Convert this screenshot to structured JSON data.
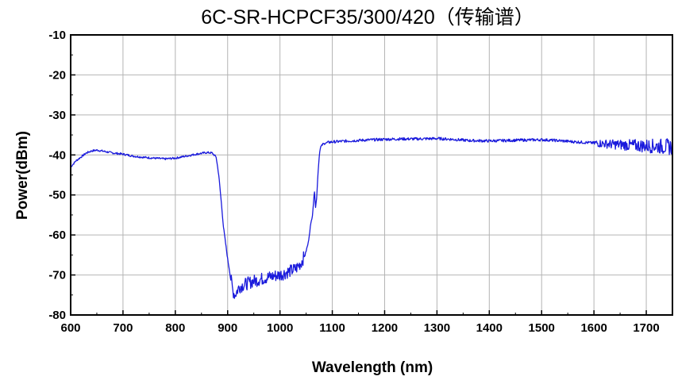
{
  "chart_data": {
    "type": "line",
    "title": "6C-SR-HCPCF35/300/420（传输谱）",
    "xlabel": "Wavelength (nm)",
    "ylabel": "Power(dBm)",
    "xlim": [
      600,
      1750
    ],
    "ylim": [
      -80,
      -10
    ],
    "xticks": [
      600,
      700,
      800,
      900,
      1000,
      1100,
      1200,
      1300,
      1400,
      1500,
      1600,
      1700
    ],
    "yticks": [
      -10,
      -20,
      -30,
      -40,
      -50,
      -60,
      -70,
      -80
    ],
    "grid": true,
    "legend": "none",
    "series": [
      {
        "color": "#1a1adc",
        "x": [
          600,
          610,
          620,
          630,
          640,
          650,
          660,
          680,
          700,
          720,
          740,
          760,
          780,
          800,
          820,
          840,
          860,
          870,
          878,
          883,
          888,
          892,
          896,
          900,
          905,
          910,
          914,
          918,
          922,
          930,
          940,
          950,
          960,
          970,
          980,
          990,
          1000,
          1010,
          1020,
          1030,
          1040,
          1048,
          1054,
          1058,
          1062,
          1064,
          1066,
          1068,
          1070,
          1072,
          1074,
          1076,
          1078,
          1082,
          1088,
          1095,
          1105,
          1130,
          1160,
          1200,
          1230,
          1260,
          1300,
          1330,
          1360,
          1400,
          1430,
          1460,
          1500,
          1530,
          1560,
          1600,
          1630,
          1660,
          1690,
          1720,
          1750
        ],
        "y": [
          -43,
          -41.5,
          -40.5,
          -39.5,
          -39,
          -38.8,
          -39,
          -39.5,
          -39.8,
          -40.3,
          -40.6,
          -40.8,
          -41,
          -40.8,
          -40.3,
          -39.8,
          -39.4,
          -39.5,
          -40.5,
          -45,
          -52,
          -58,
          -62,
          -66,
          -70,
          -74,
          -75,
          -74,
          -73,
          -72.5,
          -72,
          -71.5,
          -71.2,
          -70.8,
          -70.5,
          -70.2,
          -70,
          -69.5,
          -69,
          -68.5,
          -67,
          -65,
          -62,
          -58,
          -55,
          -52,
          -49,
          -53,
          -51,
          -46,
          -42,
          -39,
          -38,
          -37.3,
          -37,
          -36.8,
          -36.7,
          -36.5,
          -36.3,
          -36.1,
          -36,
          -36,
          -35.9,
          -36.1,
          -36.4,
          -36.5,
          -36.4,
          -36.3,
          -36.2,
          -36.4,
          -36.7,
          -37,
          -37.3,
          -37.5,
          -37.7,
          -37.8,
          -38
        ]
      }
    ]
  }
}
